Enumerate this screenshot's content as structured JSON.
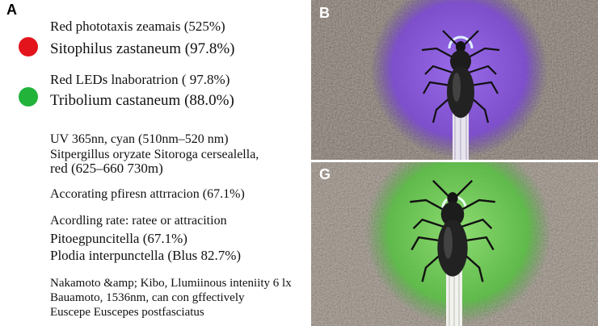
{
  "panel_a": {
    "label": "A",
    "lines": [
      "Red phototaxis zeamais (525%)",
      "Sitophilus zastaneum (97.8%)",
      "Red LEDs lnaboratrion ( 97.8%)",
      "Tribolium castaneum (88.0%)",
      "UV 365nn, cyan (510nm–520 nm)",
      "Sitpergillus oryzate Sitoroga cersealella,",
      "red (625–660 730m)",
      "Accorating pfiresn attrracion (67.1%)",
      "Acordling rate: ratee or attracition",
      "Pitoegpuncitella (67.1%)",
      "Plodia interpunctella (Blus 82.7%)",
      "Nakamoto &amp; Kibo, Llumiinous inteniity 6 lx",
      "Bauamoto, 1536nm, can con gffectively",
      "Euscepe Euscepes postfasciatus"
    ]
  },
  "panel_b": {
    "label": "B"
  },
  "panel_g": {
    "label": "G"
  }
}
